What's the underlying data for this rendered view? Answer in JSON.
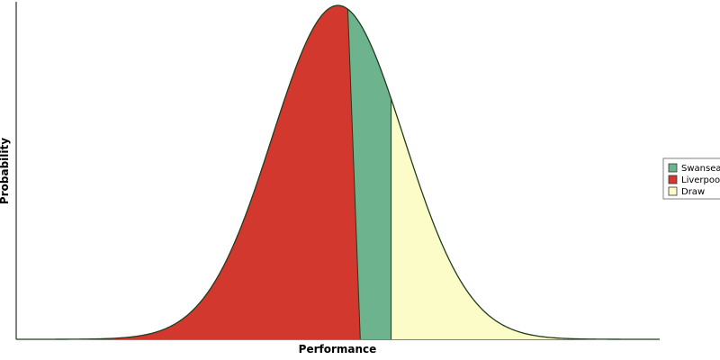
{
  "chart_data": {
    "type": "area",
    "xlabel": "Performance",
    "ylabel": "Probability",
    "x_ticks": false,
    "y_ticks": false,
    "grid": false,
    "legend_position": "right",
    "distribution": {
      "shape": "normal",
      "mean": 0.0,
      "sd": 1.0,
      "xlim": [
        -4.9,
        4.9
      ],
      "ylim": [
        0,
        1.0
      ]
    },
    "series": [
      {
        "name": "Swansea",
        "color": "#6db38e",
        "region": "middle band (tilted boundaries)"
      },
      {
        "name": "Liverpool",
        "color": "#d2382e",
        "region": "left of the tilted boundary near x≈0.15"
      },
      {
        "name": "Draw",
        "color": "#fcfcc8",
        "region": "right tail, from x≈0.81"
      }
    ],
    "boundaries": {
      "liverpool_swansea": {
        "at_peak": 0.15,
        "at_base": 0.34
      },
      "swansea_draw": {
        "at_peak": 0.81,
        "at_base": 0.81
      }
    }
  }
}
